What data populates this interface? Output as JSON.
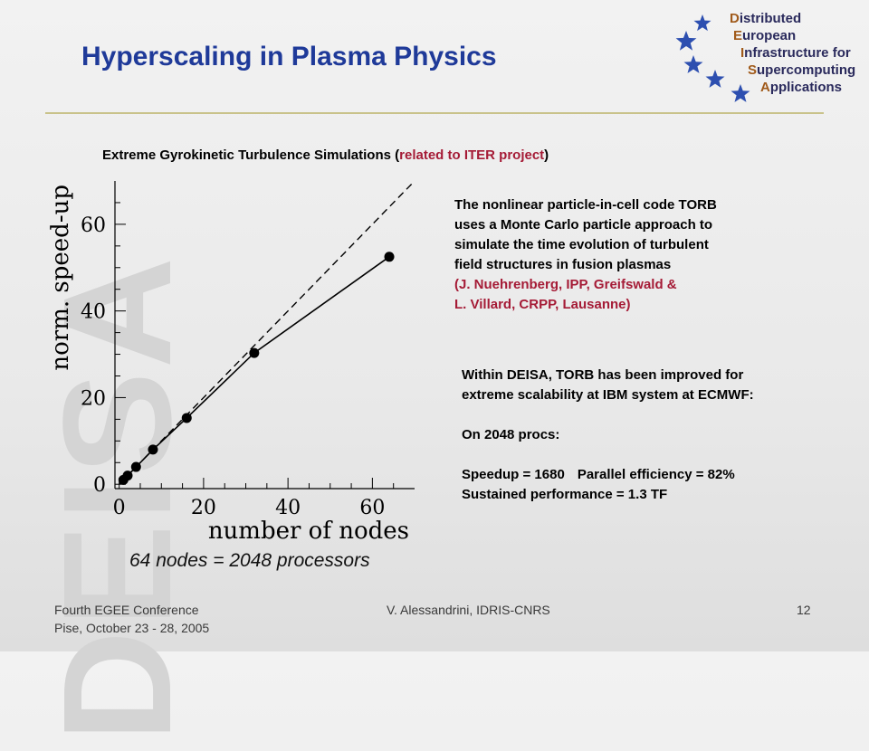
{
  "watermark": "DEISA",
  "title": "Hyperscaling in Plasma Physics",
  "logo": {
    "lines": [
      {
        "initial": "D",
        "rest": "istributed"
      },
      {
        "initial": "E",
        "rest": "uropean"
      },
      {
        "initial": "I",
        "rest": "nfrastructure for"
      },
      {
        "initial": "S",
        "rest": "upercomputing"
      },
      {
        "initial": "A",
        "rest": "pplications"
      }
    ],
    "star_color": "#2d4fb0"
  },
  "subtitle": {
    "main": "Extreme Gyrokinetic Turbulence Simulations (",
    "highlight": "related to ITER project",
    "close": ")"
  },
  "description": {
    "lines": [
      "The nonlinear particle-in-cell code TORB",
      "uses a Monte Carlo particle approach to",
      "simulate the time evolution of turbulent",
      "field structures in fusion plasmas"
    ],
    "credit_lines": [
      "(J. Nuehrenberg, IPP, Greifswald &",
      "L. Villard, CRPP, Lausanne)"
    ]
  },
  "deisa_box": {
    "line1": "Within DEISA, TORB has been improved for",
    "line2": "extreme scalability at IBM system at ECMWF:",
    "procs": "On 2048 procs:",
    "speedup": "Speedup = 1680",
    "efficiency": "Parallel efficiency = 82%",
    "performance": "Sustained performance = 1.3 TF"
  },
  "caption": "64 nodes = 2048 processors",
  "footer": {
    "conference": "Fourth EGEE Conference",
    "place_date": "Pise, October 23 - 28, 2005",
    "author": "V. Alessandrini, IDRIS-CNRS",
    "page": "12"
  },
  "colors": {
    "title": "#1f3a99",
    "highlight": "#a51b36",
    "rule": "#c9c28a"
  },
  "chart_data": {
    "type": "line",
    "xlabel": "number of nodes",
    "ylabel": "norm. speed-up",
    "xlim": [
      -1,
      70
    ],
    "ylim": [
      -1,
      70
    ],
    "x_ticks": [
      0,
      20,
      40,
      60
    ],
    "y_ticks": [
      0,
      20,
      40,
      60
    ],
    "grid": false,
    "series": [
      {
        "style": "solid-with-markers",
        "x": [
          1,
          2,
          4,
          8,
          16,
          32,
          64
        ],
        "y": [
          1,
          2,
          4,
          8,
          15.3,
          30.3,
          52.5
        ]
      },
      {
        "style": "dashed",
        "x": [
          0,
          70
        ],
        "y": [
          0,
          70
        ]
      }
    ]
  }
}
